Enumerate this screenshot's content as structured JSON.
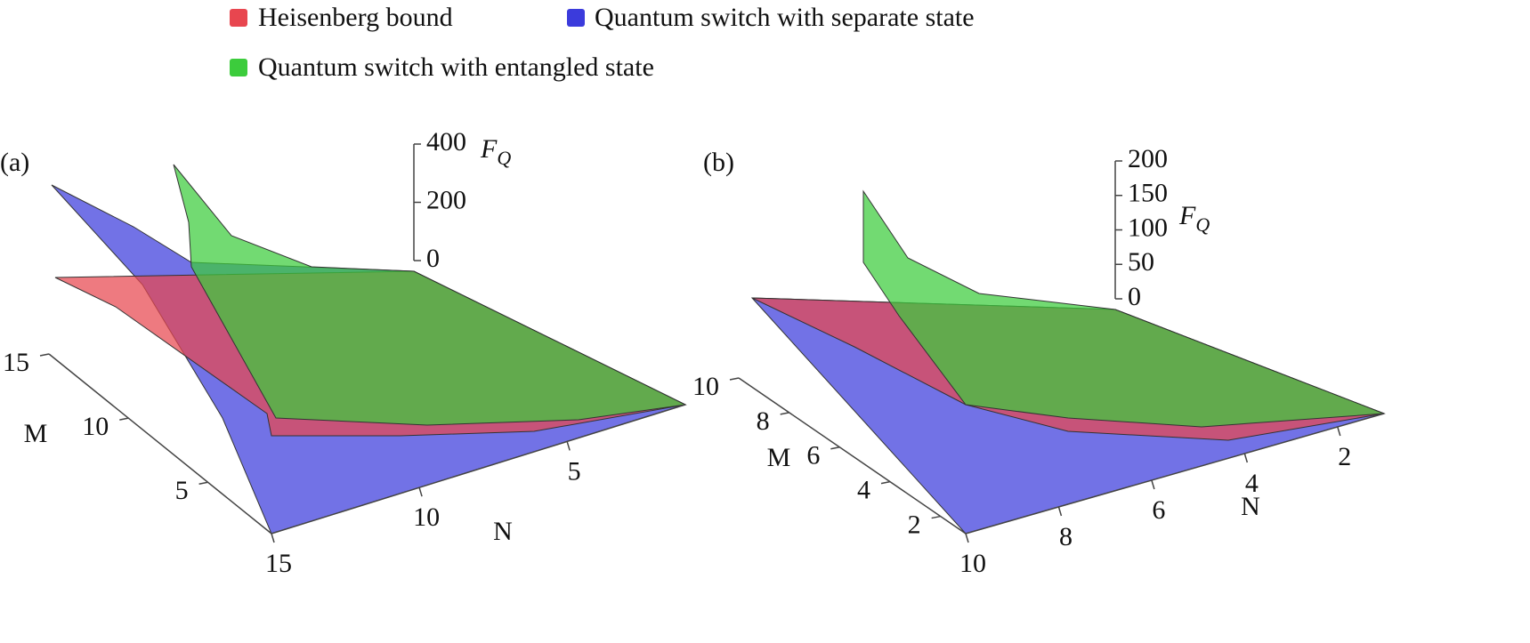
{
  "legend": [
    {
      "name": "Heisenberg bound",
      "color": "#e8464f"
    },
    {
      "name": "Quantum switch with separate state",
      "color": "#3b3bdc"
    },
    {
      "name": "Quantum switch with entangled state",
      "color": "#3ccc3c"
    }
  ],
  "chart_data": [
    {
      "type": "surface",
      "panel_label": "(a)",
      "xlabel": "N",
      "ylabel": "M",
      "zlabel": "F",
      "zlabel_subscript": "Q",
      "xlim": [
        1,
        15
      ],
      "xticks": [
        5,
        10,
        15
      ],
      "ylim": [
        1,
        15
      ],
      "yticks": [
        5,
        10,
        15
      ],
      "zlim": [
        0,
        400
      ],
      "zticks": [
        0,
        200,
        400
      ]
    },
    {
      "type": "surface",
      "panel_label": "(b)",
      "xlabel": "N",
      "ylabel": "M",
      "zlabel": "F",
      "zlabel_subscript": "Q",
      "xlim": [
        1,
        10
      ],
      "xticks": [
        2,
        4,
        6,
        8,
        10
      ],
      "ylim": [
        1,
        10
      ],
      "yticks": [
        2,
        4,
        6,
        8,
        10
      ],
      "zlim": [
        0,
        200
      ],
      "zticks": [
        0,
        50,
        100,
        150,
        200
      ]
    }
  ]
}
